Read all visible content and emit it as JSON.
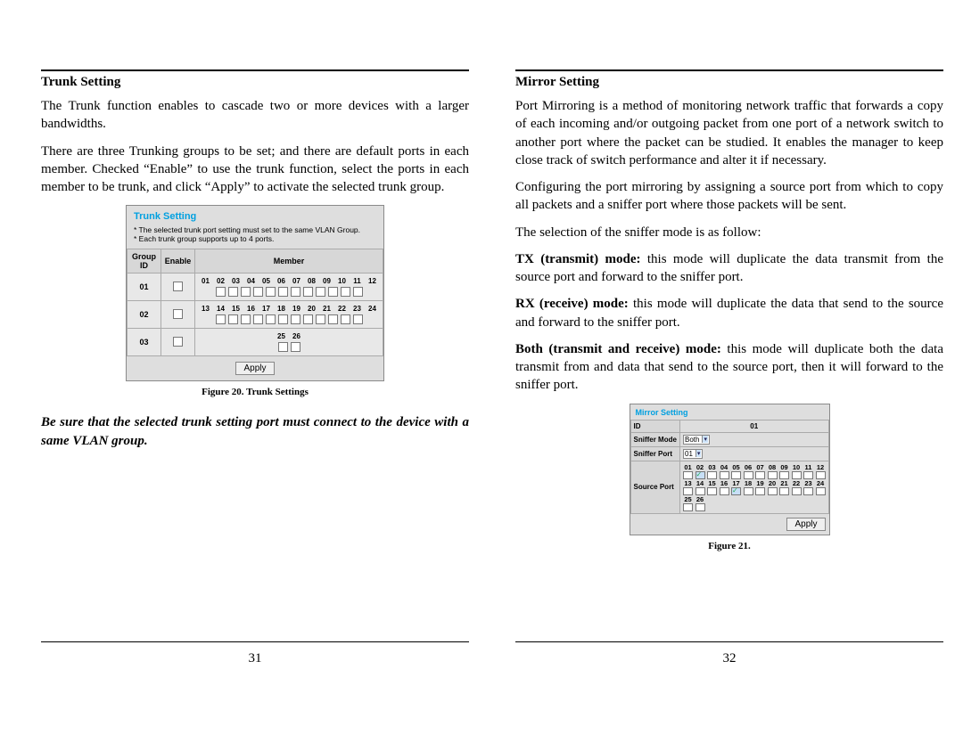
{
  "left": {
    "heading": "Trunk Setting",
    "p1": "The Trunk function enables to cascade two or more devices with a larger bandwidths.",
    "p2": "There are three Trunking groups to be set; and there are default ports in each member. Checked “Enable” to use the trunk function, select the ports in each member to be trunk, and click “Apply” to activate the selected trunk group.",
    "figCaption": "Figure 20. Trunk Settings",
    "warning": "Be sure that the selected trunk setting port must connect to the device with a same VLAN group.",
    "pageNum": "31"
  },
  "right": {
    "heading": "Mirror Setting",
    "p1": "Port Mirroring is a method of monitoring network traffic that forwards a copy of each incoming and/or outgoing packet from one port of a network switch to another port where the packet can be studied. It enables the manager to keep close track of switch performance and alter it if necessary.",
    "p2": "Configuring the port mirroring by assigning a source port from which to copy all packets and a sniffer port where those packets will be sent.",
    "p3": "The selection of the sniffer mode is as follow:",
    "tx_b": "TX (transmit) mode:",
    "tx_t": " this mode will duplicate the data transmit from the source port and forward to the sniffer port.",
    "rx_b": "RX (receive) mode:",
    "rx_t": " this mode will duplicate the data that send to the source and forward to the sniffer port.",
    "both_b": "Both (transmit and receive) mode:",
    "both_t": " this mode will duplicate both the data transmit from and data that send to the source port, then it will forward to the sniffer port.",
    "figCaption": "Figure 21.",
    "pageNum": "32"
  },
  "trunkFig": {
    "title": "Trunk Setting",
    "note1": "* The selected trunk port setting must set to the same VLAN Group.",
    "note2": "* Each trunk group supports up to 4 ports.",
    "h_group": "Group ID",
    "h_enable": "Enable",
    "h_member": "Member",
    "apply": "Apply",
    "groups": [
      {
        "id": "01",
        "ports": [
          "01",
          "02",
          "03",
          "04",
          "05",
          "06",
          "07",
          "08",
          "09",
          "10",
          "11",
          "12"
        ]
      },
      {
        "id": "02",
        "ports": [
          "13",
          "14",
          "15",
          "16",
          "17",
          "18",
          "19",
          "20",
          "21",
          "22",
          "23",
          "24"
        ]
      },
      {
        "id": "03",
        "ports": [
          "25",
          "26"
        ]
      }
    ]
  },
  "mirrorFig": {
    "title": "Mirror Setting",
    "h_id": "ID",
    "id_val": "01",
    "h_mode": "Sniffer Mode",
    "mode_val": "Both",
    "h_port": "Sniffer Port",
    "port_val": "01",
    "h_source": "Source Port",
    "apply": "Apply",
    "rows": [
      {
        "labels": [
          "01",
          "02",
          "03",
          "04",
          "05",
          "06",
          "07",
          "08",
          "09",
          "10",
          "11",
          "12"
        ],
        "checked": [
          1
        ]
      },
      {
        "labels": [
          "13",
          "14",
          "15",
          "16",
          "17",
          "18",
          "19",
          "20",
          "21",
          "22",
          "23",
          "24"
        ],
        "checked": [
          4
        ]
      },
      {
        "labels": [
          "25",
          "26"
        ],
        "checked": []
      }
    ]
  }
}
